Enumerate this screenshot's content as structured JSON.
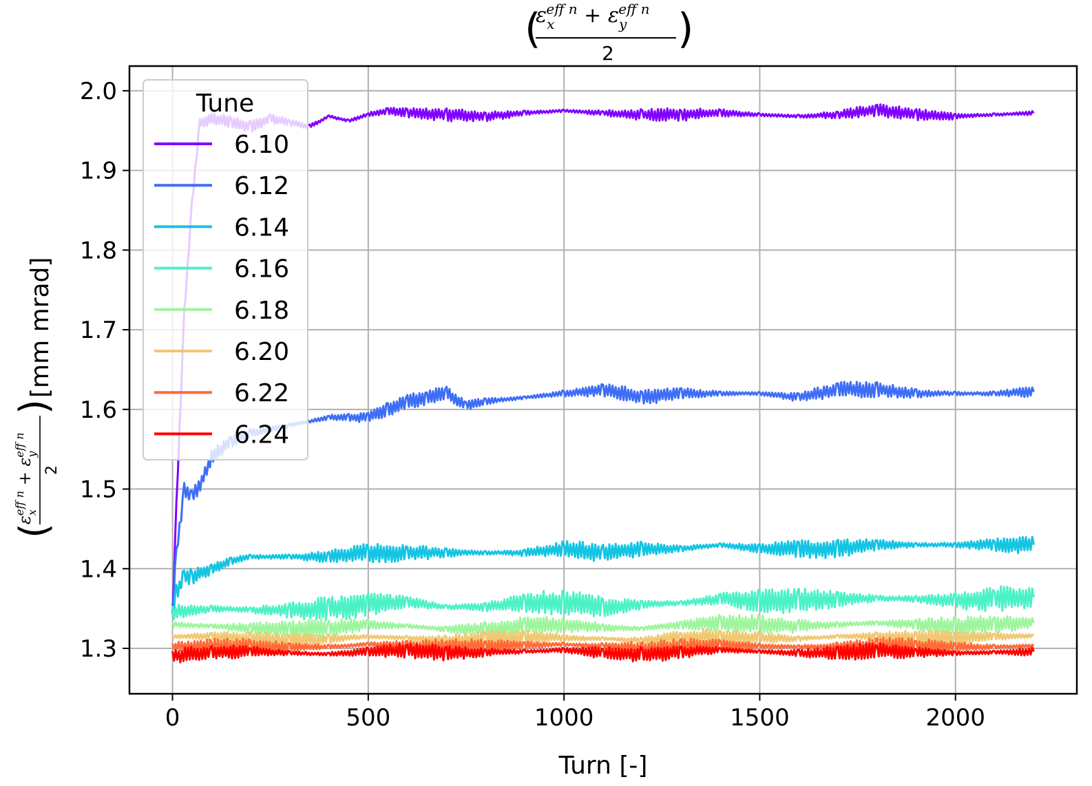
{
  "chart_data": {
    "type": "line",
    "title": "(ε_x^eff n + ε_y^eff n) / 2",
    "xlabel": "Turn [-]",
    "ylabel": "((ε_x^eff n + ε_y^eff n) / 2) [mm mrad]",
    "xlim": [
      -110,
      2310
    ],
    "ylim": [
      1.243,
      2.031
    ],
    "xticks": [
      0,
      500,
      1000,
      1500,
      2000
    ],
    "yticks": [
      1.3,
      1.4,
      1.5,
      1.6,
      1.7,
      1.8,
      1.9,
      2.0
    ],
    "xtick_labels": [
      "0",
      "500",
      "1000",
      "1500",
      "2000"
    ],
    "ytick_labels": [
      "1.3",
      "1.4",
      "1.5",
      "1.6",
      "1.7",
      "1.8",
      "1.9",
      "2.0"
    ],
    "grid": true,
    "legend": {
      "title": "Tune",
      "position": "top-left"
    },
    "series": [
      {
        "name": "6.10",
        "color": "#8000ff",
        "band": 0.008,
        "x": [
          0,
          10,
          30,
          50,
          70,
          100,
          150,
          200,
          250,
          300,
          350,
          400,
          450,
          500,
          550,
          600,
          700,
          800,
          900,
          1000,
          1100,
          1200,
          1300,
          1400,
          1500,
          1600,
          1700,
          1800,
          1900,
          2000,
          2100,
          2200
        ],
        "y": [
          1.34,
          1.48,
          1.72,
          1.86,
          1.96,
          1.965,
          1.96,
          1.955,
          1.965,
          1.96,
          1.955,
          1.968,
          1.962,
          1.97,
          1.975,
          1.972,
          1.97,
          1.968,
          1.972,
          1.975,
          1.972,
          1.97,
          1.97,
          1.972,
          1.97,
          1.968,
          1.97,
          1.976,
          1.97,
          1.968,
          1.97,
          1.972
        ]
      },
      {
        "name": "6.12",
        "color": "#3e6ef7",
        "band": 0.01,
        "x": [
          0,
          10,
          30,
          50,
          75,
          100,
          150,
          200,
          300,
          400,
          450,
          500,
          550,
          600,
          650,
          700,
          750,
          800,
          900,
          1000,
          1100,
          1200,
          1300,
          1400,
          1500,
          1600,
          1700,
          1800,
          1900,
          2000,
          2100,
          2200
        ],
        "y": [
          1.35,
          1.42,
          1.5,
          1.49,
          1.51,
          1.54,
          1.56,
          1.57,
          1.58,
          1.59,
          1.59,
          1.59,
          1.6,
          1.61,
          1.615,
          1.62,
          1.605,
          1.61,
          1.615,
          1.62,
          1.625,
          1.615,
          1.62,
          1.62,
          1.62,
          1.615,
          1.625,
          1.625,
          1.62,
          1.62,
          1.62,
          1.622
        ]
      },
      {
        "name": "6.14",
        "color": "#14c4e3",
        "band": 0.012,
        "x": [
          0,
          10,
          30,
          50,
          100,
          150,
          200,
          300,
          400,
          500,
          600,
          700,
          800,
          900,
          1000,
          1100,
          1200,
          1300,
          1400,
          1500,
          1600,
          1700,
          1800,
          1900,
          2000,
          2100,
          2200
        ],
        "y": [
          1.34,
          1.37,
          1.39,
          1.39,
          1.4,
          1.41,
          1.415,
          1.415,
          1.415,
          1.42,
          1.42,
          1.42,
          1.42,
          1.42,
          1.425,
          1.42,
          1.425,
          1.425,
          1.43,
          1.425,
          1.425,
          1.425,
          1.43,
          1.43,
          1.43,
          1.43,
          1.43
        ]
      },
      {
        "name": "6.16",
        "color": "#4cf2c6",
        "band": 0.016,
        "x": [
          0,
          100,
          200,
          300,
          400,
          500,
          600,
          700,
          800,
          900,
          1000,
          1100,
          1200,
          1300,
          1400,
          1500,
          1600,
          1700,
          1800,
          1900,
          2000,
          2100,
          2200
        ],
        "y": [
          1.345,
          1.35,
          1.348,
          1.348,
          1.35,
          1.355,
          1.358,
          1.352,
          1.352,
          1.357,
          1.358,
          1.352,
          1.355,
          1.357,
          1.362,
          1.36,
          1.36,
          1.362,
          1.363,
          1.362,
          1.36,
          1.362,
          1.364
        ]
      },
      {
        "name": "6.18",
        "color": "#9ef59d",
        "band": 0.012,
        "x": [
          0,
          100,
          200,
          300,
          400,
          500,
          600,
          700,
          800,
          900,
          1000,
          1100,
          1200,
          1300,
          1400,
          1500,
          1600,
          1700,
          1800,
          1900,
          2000,
          2100,
          2200
        ],
        "y": [
          1.33,
          1.328,
          1.325,
          1.324,
          1.325,
          1.33,
          1.328,
          1.324,
          1.325,
          1.328,
          1.33,
          1.326,
          1.325,
          1.33,
          1.332,
          1.33,
          1.328,
          1.33,
          1.332,
          1.33,
          1.328,
          1.33,
          1.332
        ]
      },
      {
        "name": "6.20",
        "color": "#f0c872",
        "band": 0.01,
        "x": [
          0,
          100,
          200,
          300,
          400,
          500,
          600,
          700,
          800,
          900,
          1000,
          1100,
          1200,
          1300,
          1400,
          1500,
          1600,
          1700,
          1800,
          1900,
          2000,
          2100,
          2200
        ],
        "y": [
          1.315,
          1.315,
          1.312,
          1.31,
          1.312,
          1.315,
          1.313,
          1.31,
          1.312,
          1.314,
          1.313,
          1.312,
          1.31,
          1.314,
          1.315,
          1.313,
          1.312,
          1.315,
          1.315,
          1.314,
          1.312,
          1.315,
          1.316
        ]
      },
      {
        "name": "6.22",
        "color": "#ff6a38",
        "band": 0.01,
        "x": [
          0,
          100,
          200,
          300,
          400,
          500,
          600,
          700,
          800,
          900,
          1000,
          1100,
          1200,
          1300,
          1400,
          1500,
          1600,
          1700,
          1800,
          1900,
          2000,
          2100,
          2200
        ],
        "y": [
          1.303,
          1.303,
          1.302,
          1.301,
          1.302,
          1.305,
          1.304,
          1.302,
          1.303,
          1.304,
          1.305,
          1.303,
          1.301,
          1.302,
          1.304,
          1.303,
          1.302,
          1.303,
          1.304,
          1.303,
          1.302,
          1.302,
          1.303
        ]
      },
      {
        "name": "6.24",
        "color": "#ff0000",
        "band": 0.01,
        "x": [
          0,
          100,
          200,
          300,
          400,
          500,
          600,
          700,
          800,
          900,
          1000,
          1100,
          1200,
          1300,
          1400,
          1500,
          1600,
          1700,
          1800,
          1900,
          2000,
          2100,
          2200
        ],
        "y": [
          1.29,
          1.295,
          1.296,
          1.294,
          1.293,
          1.296,
          1.297,
          1.294,
          1.295,
          1.296,
          1.298,
          1.294,
          1.292,
          1.295,
          1.298,
          1.296,
          1.294,
          1.294,
          1.297,
          1.295,
          1.294,
          1.295,
          1.296
        ]
      }
    ]
  }
}
